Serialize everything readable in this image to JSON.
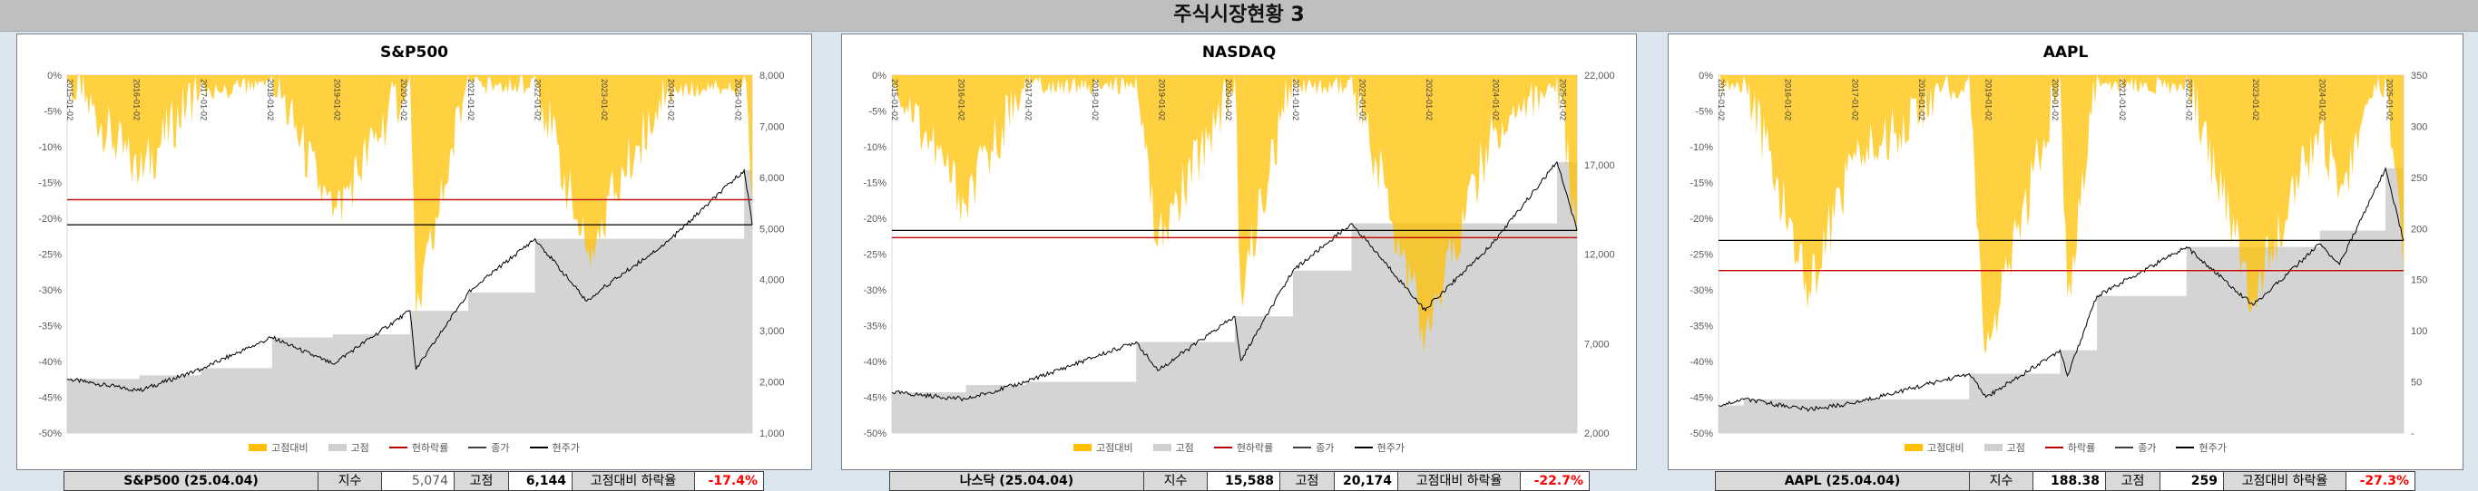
{
  "page_title": "주식시장현황 3",
  "colors": {
    "drawdown": "#ffc000",
    "peak": "#cfcfcf",
    "close": "#000000",
    "ref_red": "#c00000",
    "ref_black": "#000000"
  },
  "date_ticks": [
    "2015-01-02",
    "2016-01-02",
    "2017-01-02",
    "2018-01-02",
    "2019-01-02",
    "2020-01-02",
    "2021-01-02",
    "2022-01-02",
    "2023-01-02",
    "2024-01-02",
    "2025-01-02"
  ],
  "chart_data": [
    {
      "type": "area",
      "title": "S&P500",
      "left_axis": {
        "ticks": [
          "0%",
          "-5%",
          "-10%",
          "-15%",
          "-20%",
          "-25%",
          "-30%",
          "-35%",
          "-40%",
          "-45%",
          "-50%"
        ],
        "range": [
          -50,
          0
        ]
      },
      "right_axis": {
        "ticks": [
          "8,000",
          "7,000",
          "6,000",
          "5,000",
          "4,000",
          "3,000",
          "2,000",
          "1,000"
        ],
        "range": [
          1000,
          8000
        ]
      },
      "legend": [
        "고점대비",
        "고점",
        "현하락률",
        "종가",
        "현주가"
      ],
      "series": [
        {
          "name": "종가",
          "x": [
            "2015-01-02",
            "2016-02-01",
            "2017-01-02",
            "2018-01-26",
            "2018-12-24",
            "2020-02-19",
            "2020-03-23",
            "2021-01-02",
            "2022-01-03",
            "2022-10-12",
            "2023-01-02",
            "2024-01-02",
            "2025-02-19",
            "2025-04-04"
          ],
          "values": [
            2058,
            1830,
            2250,
            2870,
            2350,
            3390,
            2240,
            3750,
            4800,
            3580,
            3820,
            4750,
            6144,
            5074
          ]
        },
        {
          "name": "고점",
          "x": [
            "2015-01-02",
            "2016-02-01",
            "2017-01-02",
            "2018-01-26",
            "2018-12-24",
            "2020-02-19",
            "2020-03-23",
            "2021-01-02",
            "2022-01-03",
            "2022-10-12",
            "2023-01-02",
            "2024-01-02",
            "2025-02-19",
            "2025-04-04"
          ],
          "values": [
            2058,
            2130,
            2270,
            2870,
            2930,
            3390,
            3390,
            3750,
            4800,
            4800,
            4800,
            4800,
            6144,
            6144
          ]
        },
        {
          "name": "고점대비",
          "x": [
            "2015-01-02",
            "2016-02-01",
            "2017-01-02",
            "2018-01-26",
            "2018-12-24",
            "2020-02-19",
            "2020-03-23",
            "2021-01-02",
            "2022-01-03",
            "2022-10-12",
            "2023-01-02",
            "2024-01-02",
            "2025-02-19",
            "2025-04-04"
          ],
          "values": [
            0,
            -14,
            -1,
            0,
            -20,
            0,
            -34,
            0,
            0,
            -25,
            -20,
            -1,
            0,
            -17.4
          ]
        }
      ],
      "reference_lines": {
        "현하락률": -17.4,
        "현주가": 5074
      }
    },
    {
      "type": "area",
      "title": "NASDAQ",
      "left_axis": {
        "ticks": [
          "0%",
          "-5%",
          "-10%",
          "-15%",
          "-20%",
          "-25%",
          "-30%",
          "-35%",
          "-40%",
          "-45%",
          "-50%"
        ],
        "range": [
          -50,
          0
        ]
      },
      "right_axis": {
        "ticks": [
          "22,000",
          "17,000",
          "12,000",
          "7,000",
          "2,000"
        ],
        "range": [
          2000,
          26000
        ]
      },
      "legend": [
        "고점대비",
        "고점",
        "현하락률",
        "종가",
        "현주가"
      ],
      "series": [
        {
          "name": "종가",
          "x": [
            "2015-01-02",
            "2016-02-11",
            "2017-01-02",
            "2018-08-29",
            "2018-12-24",
            "2020-02-19",
            "2020-03-23",
            "2021-01-02",
            "2021-11-19",
            "2022-12-28",
            "2023-01-02",
            "2024-01-02",
            "2024-12-16",
            "2025-04-04"
          ],
          "values": [
            4730,
            4270,
            5430,
            8110,
            6190,
            9820,
            6860,
            12890,
            16060,
            10210,
            10390,
            14760,
            20174,
            15588
          ]
        },
        {
          "name": "고점",
          "x": [
            "2015-01-02",
            "2016-02-11",
            "2017-01-02",
            "2018-08-29",
            "2018-12-24",
            "2020-02-19",
            "2020-03-23",
            "2021-01-02",
            "2021-11-19",
            "2022-12-28",
            "2023-01-02",
            "2024-01-02",
            "2024-12-16",
            "2025-04-04"
          ],
          "values": [
            4730,
            5220,
            5430,
            8110,
            8110,
            9820,
            9820,
            12890,
            16060,
            16060,
            16060,
            16060,
            20174,
            20174
          ]
        },
        {
          "name": "고점대비",
          "x": [
            "2015-01-02",
            "2016-02-11",
            "2017-01-02",
            "2018-08-29",
            "2018-12-24",
            "2020-02-19",
            "2020-03-23",
            "2021-01-02",
            "2021-11-19",
            "2022-12-28",
            "2023-01-02",
            "2024-01-02",
            "2024-12-16",
            "2025-04-04"
          ],
          "values": [
            0,
            -18,
            0,
            0,
            -24,
            0,
            -30,
            0,
            0,
            -36,
            -35,
            -8,
            0,
            -22.7
          ]
        }
      ],
      "reference_lines": {
        "현하락률": -22.7,
        "현주가": 15588
      }
    },
    {
      "type": "area",
      "title": "AAPL",
      "left_axis": {
        "ticks": [
          "0%",
          "-5%",
          "-10%",
          "-15%",
          "-20%",
          "-25%",
          "-30%",
          "-35%",
          "-40%",
          "-45%",
          "-50%"
        ],
        "range": [
          -50,
          0
        ]
      },
      "right_axis": {
        "ticks": [
          "350",
          "300",
          "250",
          "200",
          "150",
          "100",
          "50",
          "-"
        ],
        "range": [
          0,
          350
        ]
      },
      "legend": [
        "고점대비",
        "고점",
        "하락률",
        "종가",
        "현주가"
      ],
      "series": [
        {
          "name": "종가",
          "x": [
            "2015-01-02",
            "2015-05-20",
            "2016-05-12",
            "2017-01-02",
            "2018-10-03",
            "2019-01-03",
            "2020-02-12",
            "2020-03-23",
            "2020-09-01",
            "2022-01-03",
            "2023-01-03",
            "2024-01-02",
            "2024-04-19",
            "2024-12-26",
            "2025-04-04"
          ],
          "values": [
            27,
            33,
            23,
            29,
            58,
            35,
            81,
            56,
            134,
            182,
            125,
            185,
            165,
            259,
            188.38
          ]
        },
        {
          "name": "고점",
          "x": [
            "2015-01-02",
            "2015-05-20",
            "2016-05-12",
            "2017-01-02",
            "2018-10-03",
            "2019-01-03",
            "2020-02-12",
            "2020-03-23",
            "2020-09-01",
            "2022-01-03",
            "2023-01-03",
            "2024-01-02",
            "2024-04-19",
            "2024-12-26",
            "2025-04-04"
          ],
          "values": [
            27,
            33,
            33,
            33,
            58,
            58,
            81,
            81,
            134,
            182,
            182,
            198,
            198,
            259,
            259
          ]
        },
        {
          "name": "고점대비",
          "x": [
            "2015-01-02",
            "2015-05-20",
            "2016-05-12",
            "2017-01-02",
            "2018-10-03",
            "2019-01-03",
            "2020-02-12",
            "2020-03-23",
            "2020-09-01",
            "2022-01-03",
            "2023-01-03",
            "2024-01-02",
            "2024-04-19",
            "2024-12-26",
            "2025-04-04"
          ],
          "values": [
            0,
            0,
            -30,
            -12,
            0,
            -39,
            0,
            -31,
            0,
            0,
            -31,
            -7,
            -16,
            0,
            -27.3
          ]
        }
      ],
      "reference_lines": {
        "하락률": -27.3,
        "현주가": 188.38
      }
    }
  ],
  "info_rows": [
    {
      "name": "S&P500 (25.04.04)",
      "index_label": "지수",
      "index_value": "5,074",
      "peak_label": "고점",
      "peak_value": "6,144",
      "drop_label": "고점대비 하락율",
      "drop_value": "-17.4%"
    },
    {
      "name": "나스닥 (25.04.04)",
      "index_label": "지수",
      "index_value": "15,588",
      "peak_label": "고점",
      "peak_value": "20,174",
      "drop_label": "고점대비 하락율",
      "drop_value": "-22.7%"
    },
    {
      "name": "AAPL (25.04.04)",
      "index_label": "지수",
      "index_value": "188.38",
      "peak_label": "고점",
      "peak_value": "259",
      "drop_label": "고점대비 하락율",
      "drop_value": "-27.3%"
    }
  ]
}
